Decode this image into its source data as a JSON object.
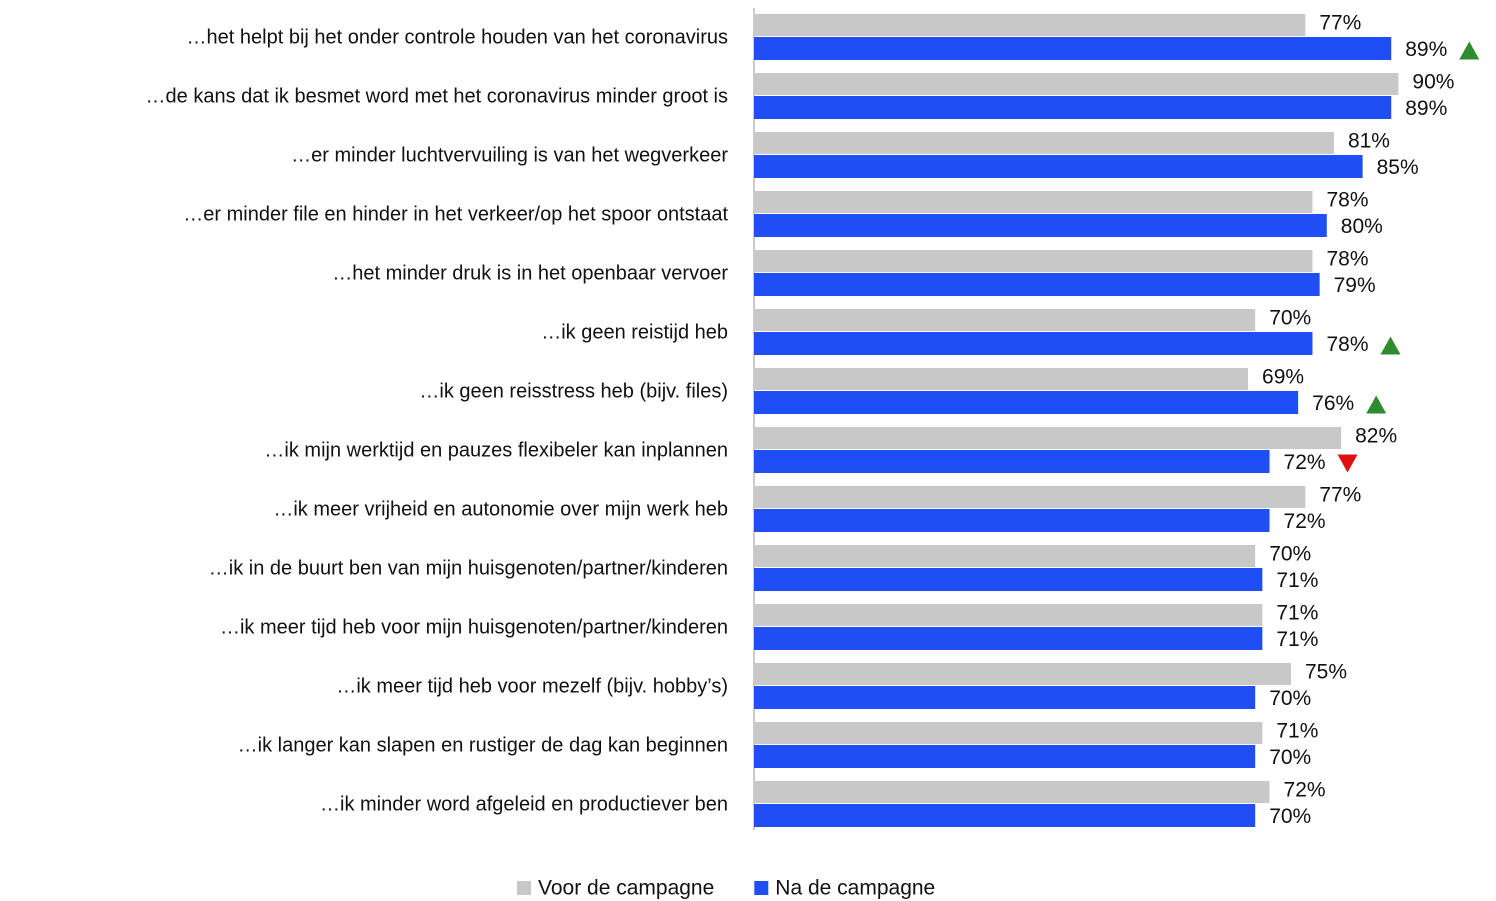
{
  "chart_data": {
    "type": "hbar",
    "categories": [
      "…het helpt bij het onder controle houden van het coronavirus",
      "…de kans dat ik besmet word met het coronavirus minder groot is",
      "…er minder luchtvervuiling is van het wegverkeer",
      "…er minder file en hinder in het verkeer/op het spoor ontstaat",
      "…het minder druk is in het openbaar vervoer",
      "…ik geen reistijd heb",
      "…ik geen reisstress heb (bijv. files)",
      "…ik mijn werktijd en pauzes flexibeler kan inplannen",
      "…ik meer vrijheid en autonomie over mijn werk heb",
      "…ik in de buurt ben van mijn huisgenoten/partner/kinderen",
      "…ik meer tijd heb voor mijn huisgenoten/partner/kinderen",
      "…ik meer tijd heb voor mezelf (bijv. hobby’s)",
      "…ik langer kan slapen en rustiger de dag kan beginnen",
      "…ik minder word afgeleid en productiever ben"
    ],
    "series": [
      {
        "name": "Voor de campagne",
        "color": "#c8c8c8",
        "values": [
          77,
          90,
          81,
          78,
          78,
          70,
          69,
          82,
          77,
          70,
          71,
          75,
          71,
          72
        ],
        "value_labels": [
          "77%",
          "90%",
          "81%",
          "78%",
          "78%",
          "70%",
          "69%",
          "82%",
          "77%",
          "70%",
          "71%",
          "75%",
          "71%",
          "72%"
        ]
      },
      {
        "name": "Na de campagne",
        "color": "#1f4ef5",
        "values": [
          89,
          89,
          85,
          80,
          79,
          78,
          76,
          72,
          72,
          71,
          71,
          70,
          70,
          70
        ],
        "value_labels": [
          "89%",
          "89%",
          "85%",
          "80%",
          "79%",
          "78%",
          "76%",
          "72%",
          "72%",
          "71%",
          "71%",
          "70%",
          "70%",
          "70%"
        ],
        "markers": [
          "up",
          null,
          null,
          null,
          null,
          "up",
          "up",
          "down",
          null,
          null,
          null,
          null,
          null,
          null
        ]
      }
    ],
    "xlim": [
      0,
      100
    ],
    "legend": "bottom"
  }
}
